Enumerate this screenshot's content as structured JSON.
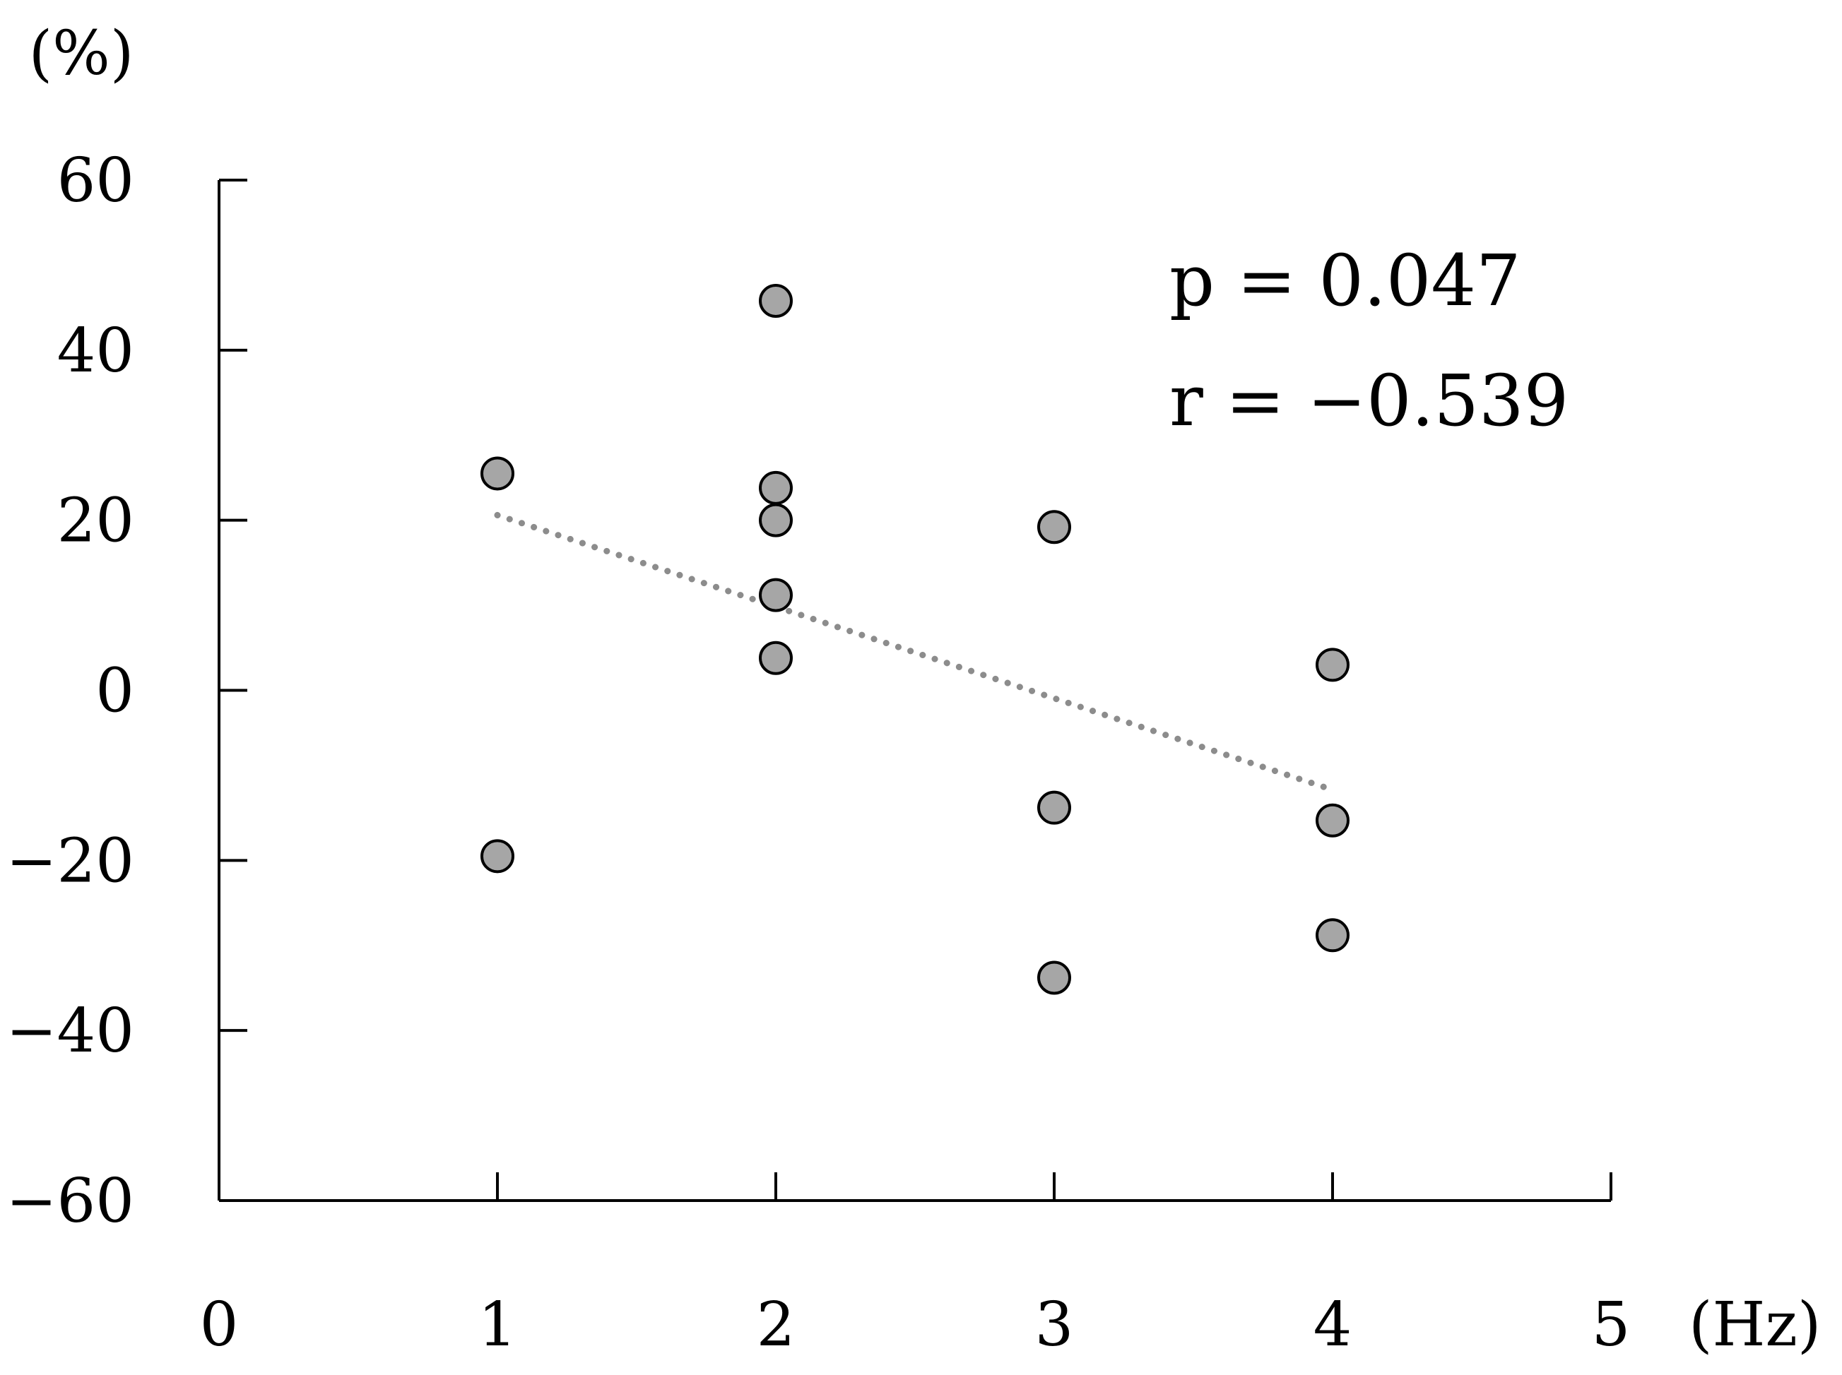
{
  "chart_data": {
    "type": "scatter",
    "title": "",
    "xlabel": "(Hz)",
    "ylabel": "(%)",
    "xlim": [
      0,
      5
    ],
    "ylim": [
      -60,
      60
    ],
    "x_ticks": [
      {
        "value": 0,
        "label": "0"
      },
      {
        "value": 1,
        "label": "1"
      },
      {
        "value": 2,
        "label": "2"
      },
      {
        "value": 3,
        "label": "3"
      },
      {
        "value": 4,
        "label": "4"
      },
      {
        "value": 5,
        "label": "5"
      }
    ],
    "y_ticks": [
      {
        "value": 60,
        "label": "60"
      },
      {
        "value": 40,
        "label": "40"
      },
      {
        "value": 20,
        "label": "20"
      },
      {
        "value": 0,
        "label": "0"
      },
      {
        "value": -20,
        "label": "−20"
      },
      {
        "value": -40,
        "label": "−40"
      },
      {
        "value": -60,
        "label": "−60"
      }
    ],
    "points": [
      {
        "x": 1,
        "y": 25.5
      },
      {
        "x": 1,
        "y": -19.5
      },
      {
        "x": 2,
        "y": 45.8
      },
      {
        "x": 2,
        "y": 23.8
      },
      {
        "x": 2,
        "y": 20.0
      },
      {
        "x": 2,
        "y": 11.2
      },
      {
        "x": 2,
        "y": 3.8
      },
      {
        "x": 3,
        "y": 19.2
      },
      {
        "x": 3,
        "y": -13.8
      },
      {
        "x": 3,
        "y": -33.8
      },
      {
        "x": 4,
        "y": 3.0
      },
      {
        "x": 4,
        "y": -15.3
      },
      {
        "x": 4,
        "y": -28.8
      }
    ],
    "trendline": {
      "style": "dotted",
      "x": [
        1,
        4
      ],
      "y": [
        20.6,
        -11.7
      ]
    },
    "annotations": [
      "p = 0.047",
      "r = −0.539"
    ],
    "grid": false,
    "legend": "none",
    "colors": {
      "point_fill": "#a6a6a6",
      "point_stroke": "#000000",
      "trendline": "#8c8c8c",
      "axis": "#000000"
    }
  }
}
